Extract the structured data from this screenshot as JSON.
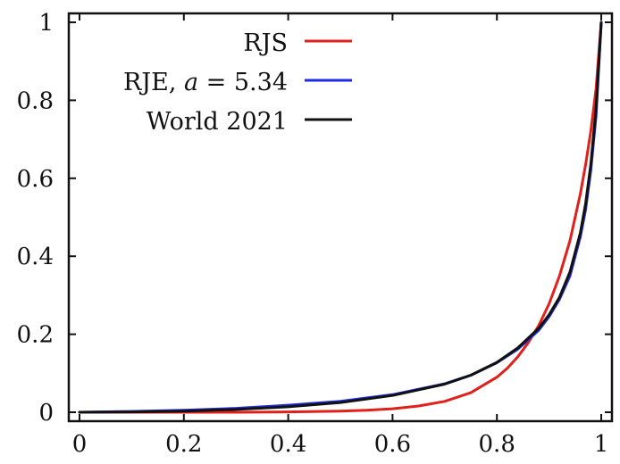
{
  "chart_data": {
    "type": "line",
    "title": "",
    "xlabel": "",
    "ylabel": "",
    "xlim": [
      0,
      1
    ],
    "ylim": [
      0,
      1
    ],
    "grid": false,
    "legend_position": "top-right",
    "x_ticks": [
      "0",
      "0.2",
      "0.4",
      "0.6",
      "0.8",
      "1"
    ],
    "y_ticks": [
      "0",
      "0.2",
      "0.4",
      "0.6",
      "0.8",
      "1"
    ],
    "series": [
      {
        "name": "RJS",
        "color": "#e0201b",
        "x": [
          0,
          0.1,
          0.2,
          0.3,
          0.4,
          0.5,
          0.55,
          0.6,
          0.65,
          0.7,
          0.75,
          0.8,
          0.82,
          0.84,
          0.86,
          0.88,
          0.9,
          0.92,
          0.94,
          0.96,
          0.97,
          0.98,
          0.99,
          1.0
        ],
        "y": [
          0,
          0,
          0,
          0,
          0.001,
          0.003,
          0.005,
          0.009,
          0.016,
          0.028,
          0.05,
          0.09,
          0.113,
          0.142,
          0.178,
          0.222,
          0.278,
          0.35,
          0.44,
          0.56,
          0.635,
          0.72,
          0.83,
          1.0
        ]
      },
      {
        "name": "RJE, a = 5.34",
        "color": "#1f2be0",
        "x": [
          0,
          0.1,
          0.2,
          0.3,
          0.4,
          0.5,
          0.6,
          0.7,
          0.75,
          0.8,
          0.84,
          0.88,
          0.9,
          0.92,
          0.94,
          0.96,
          0.97,
          0.98,
          0.99,
          1.0
        ],
        "y": [
          0,
          0.002,
          0.005,
          0.01,
          0.018,
          0.028,
          0.045,
          0.073,
          0.095,
          0.127,
          0.162,
          0.21,
          0.245,
          0.29,
          0.35,
          0.45,
          0.52,
          0.62,
          0.76,
          1.0
        ]
      },
      {
        "name": "World 2021",
        "color": "#111111",
        "x": [
          0,
          0.1,
          0.2,
          0.3,
          0.4,
          0.5,
          0.6,
          0.7,
          0.75,
          0.8,
          0.84,
          0.88,
          0.9,
          0.92,
          0.94,
          0.96,
          0.97,
          0.98,
          0.99,
          1.0
        ],
        "y": [
          0,
          0.001,
          0.003,
          0.007,
          0.014,
          0.025,
          0.043,
          0.072,
          0.095,
          0.128,
          0.165,
          0.215,
          0.25,
          0.295,
          0.36,
          0.46,
          0.535,
          0.635,
          0.78,
          1.0
        ]
      }
    ],
    "legend": [
      {
        "label_text": "RJS",
        "param": "",
        "value": "",
        "color": "#e0201b"
      },
      {
        "label_text": "RJE, ",
        "param": "a",
        "value": " = 5.34",
        "color": "#1f2be0"
      },
      {
        "label_text": "World 2021",
        "param": "",
        "value": "",
        "color": "#111111"
      }
    ]
  }
}
